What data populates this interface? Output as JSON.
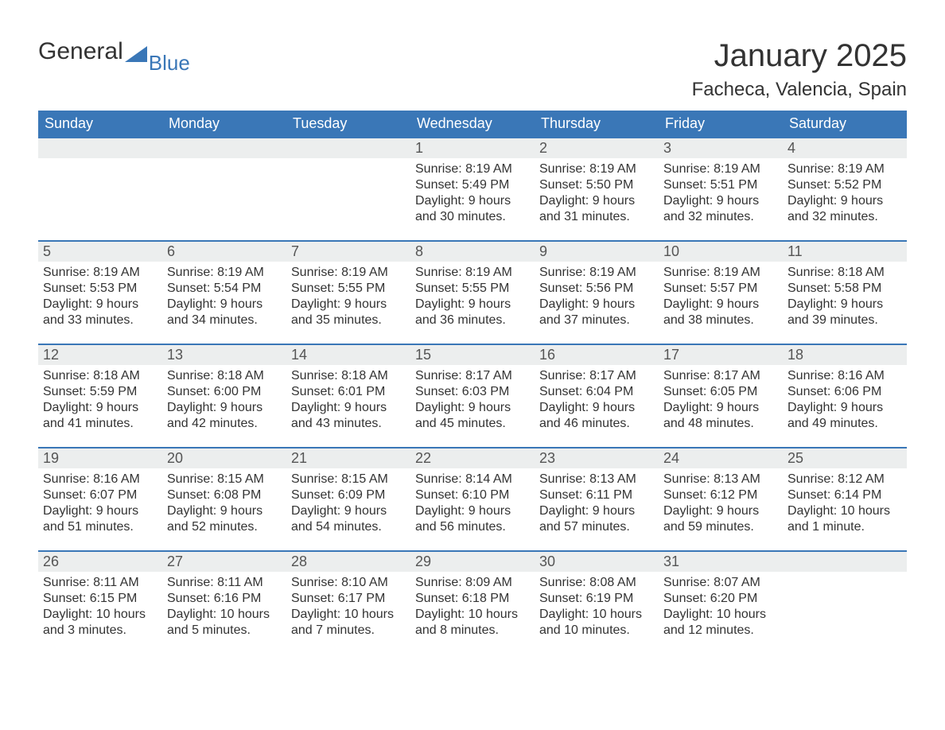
{
  "logo": {
    "text1": "General",
    "text2": "Blue",
    "tri_color": "#3a77b7"
  },
  "header": {
    "month_title": "January 2025",
    "location": "Facheca, Valencia, Spain"
  },
  "colors": {
    "header_bg": "#3a77b7",
    "header_fg": "#ffffff",
    "row_top_rule": "#3a77b7",
    "daynum_bg": "#eceeee",
    "text": "#333333",
    "page_bg": "#ffffff"
  },
  "typography": {
    "title_fontsize": 40,
    "location_fontsize": 24,
    "dayhead_fontsize": 18,
    "daynum_fontsize": 18,
    "body_fontsize": 16,
    "font_family": "Arial"
  },
  "calendar": {
    "type": "table",
    "columns": [
      "Sunday",
      "Monday",
      "Tuesday",
      "Wednesday",
      "Thursday",
      "Friday",
      "Saturday"
    ],
    "weeks": [
      [
        null,
        null,
        null,
        {
          "day": "1",
          "sunrise": "Sunrise: 8:19 AM",
          "sunset": "Sunset: 5:49 PM",
          "daylight": "Daylight: 9 hours and 30 minutes."
        },
        {
          "day": "2",
          "sunrise": "Sunrise: 8:19 AM",
          "sunset": "Sunset: 5:50 PM",
          "daylight": "Daylight: 9 hours and 31 minutes."
        },
        {
          "day": "3",
          "sunrise": "Sunrise: 8:19 AM",
          "sunset": "Sunset: 5:51 PM",
          "daylight": "Daylight: 9 hours and 32 minutes."
        },
        {
          "day": "4",
          "sunrise": "Sunrise: 8:19 AM",
          "sunset": "Sunset: 5:52 PM",
          "daylight": "Daylight: 9 hours and 32 minutes."
        }
      ],
      [
        {
          "day": "5",
          "sunrise": "Sunrise: 8:19 AM",
          "sunset": "Sunset: 5:53 PM",
          "daylight": "Daylight: 9 hours and 33 minutes."
        },
        {
          "day": "6",
          "sunrise": "Sunrise: 8:19 AM",
          "sunset": "Sunset: 5:54 PM",
          "daylight": "Daylight: 9 hours and 34 minutes."
        },
        {
          "day": "7",
          "sunrise": "Sunrise: 8:19 AM",
          "sunset": "Sunset: 5:55 PM",
          "daylight": "Daylight: 9 hours and 35 minutes."
        },
        {
          "day": "8",
          "sunrise": "Sunrise: 8:19 AM",
          "sunset": "Sunset: 5:55 PM",
          "daylight": "Daylight: 9 hours and 36 minutes."
        },
        {
          "day": "9",
          "sunrise": "Sunrise: 8:19 AM",
          "sunset": "Sunset: 5:56 PM",
          "daylight": "Daylight: 9 hours and 37 minutes."
        },
        {
          "day": "10",
          "sunrise": "Sunrise: 8:19 AM",
          "sunset": "Sunset: 5:57 PM",
          "daylight": "Daylight: 9 hours and 38 minutes."
        },
        {
          "day": "11",
          "sunrise": "Sunrise: 8:18 AM",
          "sunset": "Sunset: 5:58 PM",
          "daylight": "Daylight: 9 hours and 39 minutes."
        }
      ],
      [
        {
          "day": "12",
          "sunrise": "Sunrise: 8:18 AM",
          "sunset": "Sunset: 5:59 PM",
          "daylight": "Daylight: 9 hours and 41 minutes."
        },
        {
          "day": "13",
          "sunrise": "Sunrise: 8:18 AM",
          "sunset": "Sunset: 6:00 PM",
          "daylight": "Daylight: 9 hours and 42 minutes."
        },
        {
          "day": "14",
          "sunrise": "Sunrise: 8:18 AM",
          "sunset": "Sunset: 6:01 PM",
          "daylight": "Daylight: 9 hours and 43 minutes."
        },
        {
          "day": "15",
          "sunrise": "Sunrise: 8:17 AM",
          "sunset": "Sunset: 6:03 PM",
          "daylight": "Daylight: 9 hours and 45 minutes."
        },
        {
          "day": "16",
          "sunrise": "Sunrise: 8:17 AM",
          "sunset": "Sunset: 6:04 PM",
          "daylight": "Daylight: 9 hours and 46 minutes."
        },
        {
          "day": "17",
          "sunrise": "Sunrise: 8:17 AM",
          "sunset": "Sunset: 6:05 PM",
          "daylight": "Daylight: 9 hours and 48 minutes."
        },
        {
          "day": "18",
          "sunrise": "Sunrise: 8:16 AM",
          "sunset": "Sunset: 6:06 PM",
          "daylight": "Daylight: 9 hours and 49 minutes."
        }
      ],
      [
        {
          "day": "19",
          "sunrise": "Sunrise: 8:16 AM",
          "sunset": "Sunset: 6:07 PM",
          "daylight": "Daylight: 9 hours and 51 minutes."
        },
        {
          "day": "20",
          "sunrise": "Sunrise: 8:15 AM",
          "sunset": "Sunset: 6:08 PM",
          "daylight": "Daylight: 9 hours and 52 minutes."
        },
        {
          "day": "21",
          "sunrise": "Sunrise: 8:15 AM",
          "sunset": "Sunset: 6:09 PM",
          "daylight": "Daylight: 9 hours and 54 minutes."
        },
        {
          "day": "22",
          "sunrise": "Sunrise: 8:14 AM",
          "sunset": "Sunset: 6:10 PM",
          "daylight": "Daylight: 9 hours and 56 minutes."
        },
        {
          "day": "23",
          "sunrise": "Sunrise: 8:13 AM",
          "sunset": "Sunset: 6:11 PM",
          "daylight": "Daylight: 9 hours and 57 minutes."
        },
        {
          "day": "24",
          "sunrise": "Sunrise: 8:13 AM",
          "sunset": "Sunset: 6:12 PM",
          "daylight": "Daylight: 9 hours and 59 minutes."
        },
        {
          "day": "25",
          "sunrise": "Sunrise: 8:12 AM",
          "sunset": "Sunset: 6:14 PM",
          "daylight": "Daylight: 10 hours and 1 minute."
        }
      ],
      [
        {
          "day": "26",
          "sunrise": "Sunrise: 8:11 AM",
          "sunset": "Sunset: 6:15 PM",
          "daylight": "Daylight: 10 hours and 3 minutes."
        },
        {
          "day": "27",
          "sunrise": "Sunrise: 8:11 AM",
          "sunset": "Sunset: 6:16 PM",
          "daylight": "Daylight: 10 hours and 5 minutes."
        },
        {
          "day": "28",
          "sunrise": "Sunrise: 8:10 AM",
          "sunset": "Sunset: 6:17 PM",
          "daylight": "Daylight: 10 hours and 7 minutes."
        },
        {
          "day": "29",
          "sunrise": "Sunrise: 8:09 AM",
          "sunset": "Sunset: 6:18 PM",
          "daylight": "Daylight: 10 hours and 8 minutes."
        },
        {
          "day": "30",
          "sunrise": "Sunrise: 8:08 AM",
          "sunset": "Sunset: 6:19 PM",
          "daylight": "Daylight: 10 hours and 10 minutes."
        },
        {
          "day": "31",
          "sunrise": "Sunrise: 8:07 AM",
          "sunset": "Sunset: 6:20 PM",
          "daylight": "Daylight: 10 hours and 12 minutes."
        },
        null
      ]
    ]
  }
}
